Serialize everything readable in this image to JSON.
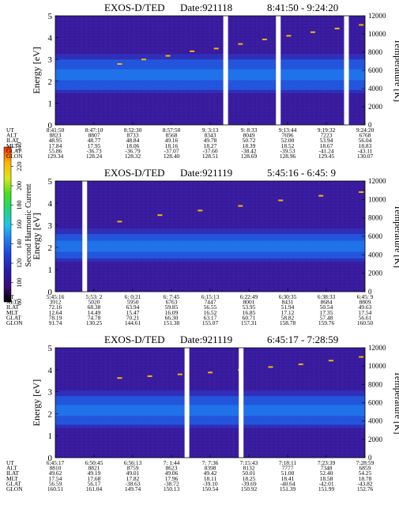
{
  "figure": {
    "colorbar": {
      "label": "Second Harmonic Current",
      "ticks": [
        "80",
        "100",
        "120",
        "140",
        "160",
        "180",
        "200",
        "220",
        "240"
      ],
      "stops": [
        "#000000",
        "#3b0a78",
        "#2a1aa8",
        "#1f3fd8",
        "#1f7af0",
        "#22c4e8",
        "#1fd77a",
        "#48e01a",
        "#d8e61a",
        "#ffb400",
        "#ff2a00"
      ]
    },
    "labels": {
      "left": "Energy [eV]",
      "right": "Temperature [K]"
    },
    "row_labels": [
      "UT",
      "ALT",
      "ILAT",
      "MLT",
      "GLAT",
      "GLON"
    ]
  },
  "chart_data": [
    {
      "type": "heatmap",
      "title": "EXOS-D/TED",
      "date": "Date:921118",
      "time_range": "8:41:50 - 9:24:20",
      "ylabel": "Energy [eV]",
      "y2label": "Temperature [K]",
      "ylim": [
        0,
        5
      ],
      "y_ticks": [
        "0",
        "1",
        "2",
        "3",
        "4",
        "5"
      ],
      "y2lim": [
        0,
        12000
      ],
      "y2_ticks": [
        "0",
        "2000",
        "4000",
        "6000",
        "8000",
        "10000",
        "12000"
      ],
      "columns": [
        {
          "UT": "8:41:50",
          "ALT": "8823",
          "ILAT": "48.95",
          "MLT": "17.84",
          "GLAT": "55.86",
          "GLON": "129.34"
        },
        {
          "UT": "8:47:10",
          "ALT": "8807",
          "ILAT": "48.77",
          "MLT": "17.95",
          "GLAT": "-36.73",
          "GLON": "128.24"
        },
        {
          "UT": "8:52:30",
          "ALT": "8733",
          "ILAT": "48.84",
          "MLT": "18.06",
          "GLAT": "-36.79",
          "GLON": "128.32"
        },
        {
          "UT": "8:57:50",
          "ALT": "8568",
          "ILAT": "49.16",
          "MLT": "18.16",
          "GLAT": "-37.07",
          "GLON": "128.40"
        },
        {
          "UT": "9: 3:13",
          "ALT": "8343",
          "ILAT": "49.78",
          "MLT": "18.27",
          "GLAT": "-37.60",
          "GLON": "128.51"
        },
        {
          "UT": "9: 8:33",
          "ALT": "8049",
          "ILAT": "50.72",
          "MLT": "18.39",
          "GLAT": "-38.42",
          "GLON": "128.69"
        },
        {
          "UT": "9:13:44",
          "ALT": "7696",
          "ILAT": "52.00",
          "MLT": "18.52",
          "GLAT": "-39.53",
          "GLON": "128.96"
        },
        {
          "UT": "9:19:32",
          "ALT": "7223",
          "ILAT": "53.94",
          "MLT": "18.67",
          "GLAT": "-41.24",
          "GLON": "129.45"
        },
        {
          "UT": "9:24:20",
          "ALT": "6768",
          "ILAT": "56.04",
          "MLT": "18.83",
          "GLAT": "-43.11",
          "GLON": "130.07"
        }
      ],
      "band_energy": [
        1.6,
        3.0
      ],
      "gaps": [
        0.55,
        0.72,
        0.94
      ],
      "temperature_points": [
        6700,
        7200,
        7600,
        8100,
        8400,
        8900,
        9400,
        9800,
        10200,
        10600,
        11000
      ]
    },
    {
      "type": "heatmap",
      "title": "EXOS-D/TED",
      "date": "Date:921119",
      "time_range": "5:45:16 - 6:45: 9",
      "ylabel": "Energy [eV]",
      "y2label": "Temperature [K]",
      "ylim": [
        0,
        5
      ],
      "y_ticks": [
        "0",
        "1",
        "2",
        "3",
        "4",
        "5"
      ],
      "y2lim": [
        0,
        12000
      ],
      "y2_ticks": [
        "0",
        "2000",
        "4000",
        "6000",
        "8000",
        "10000",
        "12000"
      ],
      "columns": [
        {
          "UT": "5:45:16",
          "ALT": "3912",
          "ILAT": "72.16",
          "MLT": "12.64",
          "GLAT": "78.19",
          "GLON": "91.74"
        },
        {
          "UT": "5:53: 2",
          "ALT": "5020",
          "ILAT": "68.38",
          "MLT": "14.49",
          "GLAT": "74.78",
          "GLON": "130.25"
        },
        {
          "UT": "6: 0:21",
          "ALT": "5950",
          "ILAT": "63.94",
          "MLT": "15.47",
          "GLAT": "70.21",
          "GLON": "144.61"
        },
        {
          "UT": "6: 7:45",
          "ALT": "6763",
          "ILAT": "59.85",
          "MLT": "16.09",
          "GLAT": "66.30",
          "GLON": "151.38"
        },
        {
          "UT": "6:15:13",
          "ALT": "7447",
          "ILAT": "56.55",
          "MLT": "16.52",
          "GLAT": "63.17",
          "GLON": "155.07"
        },
        {
          "UT": "6:22:49",
          "ALT": "8001",
          "ILAT": "53.95",
          "MLT": "16.85",
          "GLAT": "60.71",
          "GLON": "157.31"
        },
        {
          "UT": "6:30:35",
          "ALT": "8431",
          "ILAT": "51.94",
          "MLT": "17.12",
          "GLAT": "58.82",
          "GLON": "158.78"
        },
        {
          "UT": "6:38:33",
          "ALT": "8684",
          "ILAT": "50.54",
          "MLT": "17.35",
          "GLAT": "57.48",
          "GLON": "159.76"
        },
        {
          "UT": "6:45: 9",
          "ALT": "8809",
          "ILAT": "49.63",
          "MLT": "17.54",
          "GLAT": "56.61",
          "GLON": "160.50"
        }
      ],
      "band_energy": [
        1.5,
        2.6
      ],
      "gaps": [
        0.095
      ],
      "temperature_points": [
        7600,
        8300,
        8800,
        9300,
        9900,
        10400,
        10800
      ]
    },
    {
      "type": "heatmap",
      "title": "EXOS-D/TED",
      "date": "Date:921119",
      "time_range": "6:45:17 - 7:28:59",
      "ylabel": "Energy [eV]",
      "y2label": "Temperature [K]",
      "ylim": [
        0,
        5
      ],
      "y_ticks": [
        "0",
        "1",
        "2",
        "3",
        "4",
        "5"
      ],
      "y2lim": [
        0,
        12000
      ],
      "y2_ticks": [
        "0",
        "2000",
        "4000",
        "6000",
        "8000",
        "10000",
        "12000"
      ],
      "columns": [
        {
          "UT": "6:45:17",
          "ALT": "8810",
          "ILAT": "49.62",
          "MLT": "17.54",
          "GLAT": "56.59",
          "GLON": "160.51"
        },
        {
          "UT": "6:50:45",
          "ALT": "8821",
          "ILAT": "49.19",
          "MLT": "17.68",
          "GLAT": "56.17",
          "GLON": "161.04"
        },
        {
          "UT": "6:56:13",
          "ALT": "8759",
          "ILAT": "49.01",
          "MLT": "17.82",
          "GLAT": "-38.63",
          "GLON": "149.74"
        },
        {
          "UT": "7: 1:44",
          "ALT": "8623",
          "ILAT": "49.06",
          "MLT": "17.96",
          "GLAT": "-38.72",
          "GLON": "150.13"
        },
        {
          "UT": "7: 7:36",
          "ALT": "8398",
          "ILAT": "49.42",
          "MLT": "18.11",
          "GLAT": "-39.10",
          "GLON": "150.54"
        },
        {
          "UT": "7:15:43",
          "ALT": "8132",
          "ILAT": "50.01",
          "MLT": "18.25",
          "GLAT": "-39.69",
          "GLON": "150.92"
        },
        {
          "UT": "7:18:11",
          "ALT": "7777",
          "ILAT": "51.00",
          "MLT": "18.41",
          "GLAT": "-40.64",
          "GLON": "151.39"
        },
        {
          "UT": "7:23:39",
          "ALT": "7348",
          "ILAT": "52.40",
          "MLT": "18.58",
          "GLAT": "-42.01",
          "GLON": "151.99"
        },
        {
          "UT": "7:28:59",
          "ALT": "6859",
          "ILAT": "54.25",
          "MLT": "18.78",
          "GLAT": "-43.82",
          "GLON": "152.76"
        }
      ],
      "band_energy": [
        1.5,
        2.8
      ],
      "gaps": [
        0.425,
        0.6
      ],
      "temperature_points": [
        8700,
        8900,
        9100,
        9300,
        9600,
        9900,
        10200,
        10600,
        11000
      ]
    }
  ]
}
